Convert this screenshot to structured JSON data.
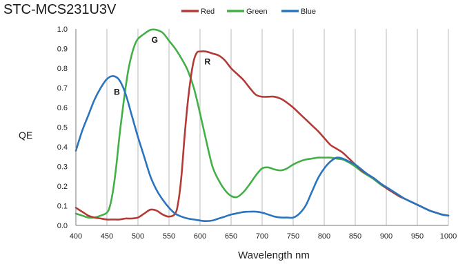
{
  "chart_data": {
    "type": "line",
    "title": "STC-MCS231U3V",
    "xlabel": "Wavelength nm",
    "ylabel": "QE",
    "xlim": [
      400,
      1000
    ],
    "ylim": [
      0.0,
      1.0
    ],
    "xticks": [
      "400",
      "450",
      "500",
      "550",
      "600",
      "650",
      "700",
      "750",
      "800",
      "850",
      "900",
      "950",
      "1000"
    ],
    "yticks": [
      "0.0",
      "0.1",
      "0.2",
      "0.3",
      "0.4",
      "0.5",
      "0.6",
      "0.7",
      "0.8",
      "0.9",
      "1.0"
    ],
    "grid": "vertical",
    "legend": "top",
    "series": [
      {
        "name": "Red",
        "color": "#b33a36",
        "label": "R",
        "points": [
          [
            400,
            0.09
          ],
          [
            410,
            0.07
          ],
          [
            420,
            0.05
          ],
          [
            430,
            0.04
          ],
          [
            440,
            0.035
          ],
          [
            450,
            0.03
          ],
          [
            460,
            0.03
          ],
          [
            470,
            0.03
          ],
          [
            480,
            0.035
          ],
          [
            490,
            0.035
          ],
          [
            500,
            0.04
          ],
          [
            510,
            0.06
          ],
          [
            520,
            0.08
          ],
          [
            530,
            0.075
          ],
          [
            540,
            0.055
          ],
          [
            550,
            0.045
          ],
          [
            560,
            0.06
          ],
          [
            565,
            0.12
          ],
          [
            570,
            0.25
          ],
          [
            575,
            0.45
          ],
          [
            580,
            0.62
          ],
          [
            585,
            0.75
          ],
          [
            590,
            0.84
          ],
          [
            595,
            0.88
          ],
          [
            600,
            0.885
          ],
          [
            610,
            0.885
          ],
          [
            620,
            0.875
          ],
          [
            630,
            0.865
          ],
          [
            640,
            0.84
          ],
          [
            650,
            0.8
          ],
          [
            660,
            0.77
          ],
          [
            670,
            0.74
          ],
          [
            680,
            0.7
          ],
          [
            690,
            0.665
          ],
          [
            700,
            0.655
          ],
          [
            710,
            0.655
          ],
          [
            720,
            0.655
          ],
          [
            730,
            0.645
          ],
          [
            740,
            0.625
          ],
          [
            750,
            0.6
          ],
          [
            760,
            0.57
          ],
          [
            770,
            0.54
          ],
          [
            780,
            0.51
          ],
          [
            790,
            0.48
          ],
          [
            800,
            0.445
          ],
          [
            810,
            0.41
          ],
          [
            820,
            0.39
          ],
          [
            830,
            0.37
          ],
          [
            840,
            0.34
          ],
          [
            850,
            0.31
          ],
          [
            860,
            0.28
          ],
          [
            870,
            0.26
          ],
          [
            880,
            0.24
          ],
          [
            890,
            0.215
          ],
          [
            900,
            0.19
          ],
          [
            910,
            0.17
          ],
          [
            920,
            0.15
          ],
          [
            930,
            0.135
          ],
          [
            940,
            0.12
          ],
          [
            950,
            0.105
          ],
          [
            960,
            0.09
          ],
          [
            970,
            0.075
          ],
          [
            980,
            0.065
          ],
          [
            990,
            0.055
          ],
          [
            1000,
            0.05
          ]
        ]
      },
      {
        "name": "Green",
        "color": "#43b047",
        "label": "G",
        "points": [
          [
            400,
            0.06
          ],
          [
            410,
            0.05
          ],
          [
            420,
            0.04
          ],
          [
            430,
            0.04
          ],
          [
            440,
            0.05
          ],
          [
            450,
            0.065
          ],
          [
            455,
            0.1
          ],
          [
            460,
            0.18
          ],
          [
            465,
            0.3
          ],
          [
            470,
            0.45
          ],
          [
            475,
            0.58
          ],
          [
            480,
            0.7
          ],
          [
            485,
            0.8
          ],
          [
            490,
            0.87
          ],
          [
            495,
            0.92
          ],
          [
            500,
            0.95
          ],
          [
            510,
            0.975
          ],
          [
            520,
            0.995
          ],
          [
            530,
            0.995
          ],
          [
            540,
            0.98
          ],
          [
            550,
            0.94
          ],
          [
            560,
            0.9
          ],
          [
            570,
            0.85
          ],
          [
            580,
            0.79
          ],
          [
            590,
            0.7
          ],
          [
            600,
            0.57
          ],
          [
            610,
            0.43
          ],
          [
            620,
            0.3
          ],
          [
            630,
            0.23
          ],
          [
            640,
            0.18
          ],
          [
            650,
            0.15
          ],
          [
            660,
            0.145
          ],
          [
            670,
            0.17
          ],
          [
            680,
            0.21
          ],
          [
            690,
            0.255
          ],
          [
            700,
            0.29
          ],
          [
            710,
            0.295
          ],
          [
            720,
            0.285
          ],
          [
            730,
            0.28
          ],
          [
            740,
            0.29
          ],
          [
            750,
            0.31
          ],
          [
            760,
            0.325
          ],
          [
            770,
            0.335
          ],
          [
            780,
            0.34
          ],
          [
            790,
            0.345
          ],
          [
            800,
            0.345
          ],
          [
            810,
            0.345
          ],
          [
            820,
            0.34
          ],
          [
            830,
            0.335
          ],
          [
            840,
            0.32
          ],
          [
            850,
            0.3
          ],
          [
            860,
            0.275
          ],
          [
            870,
            0.255
          ],
          [
            880,
            0.235
          ],
          [
            890,
            0.21
          ],
          [
            900,
            0.19
          ],
          [
            910,
            0.17
          ],
          [
            920,
            0.15
          ],
          [
            930,
            0.135
          ],
          [
            940,
            0.12
          ],
          [
            950,
            0.105
          ],
          [
            960,
            0.09
          ],
          [
            970,
            0.075
          ],
          [
            980,
            0.065
          ],
          [
            990,
            0.055
          ],
          [
            1000,
            0.05
          ]
        ]
      },
      {
        "name": "Blue",
        "color": "#2a73bd",
        "label": "B",
        "points": [
          [
            400,
            0.38
          ],
          [
            410,
            0.48
          ],
          [
            420,
            0.56
          ],
          [
            430,
            0.64
          ],
          [
            440,
            0.7
          ],
          [
            450,
            0.745
          ],
          [
            460,
            0.76
          ],
          [
            470,
            0.74
          ],
          [
            480,
            0.67
          ],
          [
            490,
            0.56
          ],
          [
            500,
            0.45
          ],
          [
            510,
            0.35
          ],
          [
            520,
            0.25
          ],
          [
            530,
            0.18
          ],
          [
            540,
            0.13
          ],
          [
            550,
            0.09
          ],
          [
            560,
            0.06
          ],
          [
            570,
            0.045
          ],
          [
            580,
            0.035
          ],
          [
            590,
            0.03
          ],
          [
            600,
            0.025
          ],
          [
            610,
            0.022
          ],
          [
            620,
            0.025
          ],
          [
            630,
            0.035
          ],
          [
            640,
            0.045
          ],
          [
            650,
            0.055
          ],
          [
            660,
            0.062
          ],
          [
            670,
            0.068
          ],
          [
            680,
            0.07
          ],
          [
            690,
            0.07
          ],
          [
            700,
            0.065
          ],
          [
            710,
            0.055
          ],
          [
            720,
            0.045
          ],
          [
            730,
            0.04
          ],
          [
            740,
            0.04
          ],
          [
            750,
            0.04
          ],
          [
            760,
            0.06
          ],
          [
            770,
            0.1
          ],
          [
            780,
            0.17
          ],
          [
            790,
            0.24
          ],
          [
            800,
            0.29
          ],
          [
            810,
            0.325
          ],
          [
            820,
            0.345
          ],
          [
            830,
            0.34
          ],
          [
            840,
            0.325
          ],
          [
            850,
            0.31
          ],
          [
            860,
            0.285
          ],
          [
            870,
            0.26
          ],
          [
            880,
            0.24
          ],
          [
            890,
            0.215
          ],
          [
            900,
            0.195
          ],
          [
            910,
            0.175
          ],
          [
            920,
            0.155
          ],
          [
            930,
            0.135
          ],
          [
            940,
            0.12
          ],
          [
            950,
            0.105
          ],
          [
            960,
            0.09
          ],
          [
            970,
            0.075
          ],
          [
            980,
            0.065
          ],
          [
            990,
            0.055
          ],
          [
            1000,
            0.05
          ]
        ]
      }
    ]
  }
}
